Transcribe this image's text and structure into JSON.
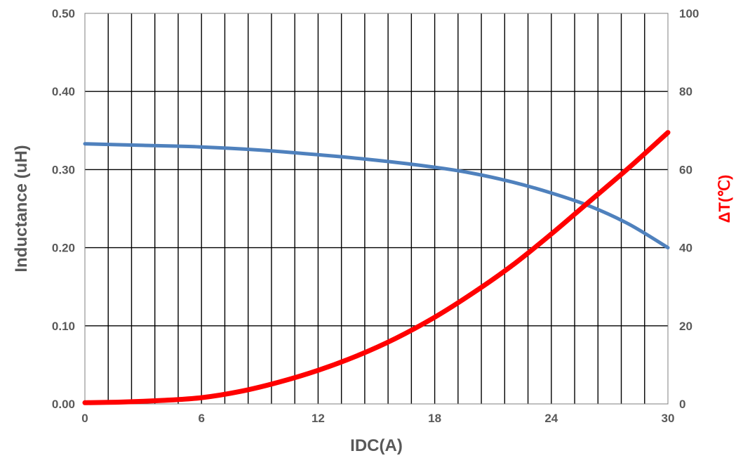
{
  "chart_data": {
    "type": "line",
    "xlabel": "IDC(A)",
    "ylabel": "Inductance (uH)",
    "y2label": "ΔT(℃)",
    "xlim": [
      0,
      30
    ],
    "ylim": [
      0,
      0.5
    ],
    "y2lim": [
      0,
      100
    ],
    "xticks": [
      0,
      6,
      12,
      18,
      24,
      30
    ],
    "xtick_labels": [
      "0",
      "6",
      "12",
      "18",
      "24",
      "30"
    ],
    "yticks": [
      0,
      0.1,
      0.2,
      0.3,
      0.4,
      0.5
    ],
    "ytick_labels": [
      "0.00",
      "0.10",
      "0.20",
      "0.30",
      "0.40",
      "0.50"
    ],
    "y2ticks": [
      0,
      20,
      40,
      60,
      80,
      100
    ],
    "y2tick_labels": [
      "0",
      "20",
      "40",
      "60",
      "80",
      "100"
    ],
    "grid": "vertical lines every 1.2 A, horizontal lines at major y ticks",
    "legend": "none",
    "series": [
      {
        "axis": "left",
        "color": "#4f81bd",
        "x": [
          0,
          3,
          6,
          9,
          12,
          15,
          18,
          20,
          22,
          24,
          26,
          28,
          30
        ],
        "y": [
          0.333,
          0.331,
          0.329,
          0.325,
          0.319,
          0.312,
          0.303,
          0.295,
          0.284,
          0.27,
          0.253,
          0.23,
          0.2
        ]
      },
      {
        "axis": "right",
        "color": "#ff0000",
        "x": [
          0,
          2,
          4,
          6,
          8,
          10,
          12,
          14,
          16,
          18,
          20,
          22,
          24,
          26,
          28,
          30
        ],
        "y": [
          0.3,
          0.5,
          0.9,
          1.6,
          3.2,
          5.6,
          8.6,
          12.3,
          16.8,
          22.2,
          28.5,
          35.5,
          43.5,
          52.0,
          60.5,
          69.5
        ]
      }
    ]
  }
}
